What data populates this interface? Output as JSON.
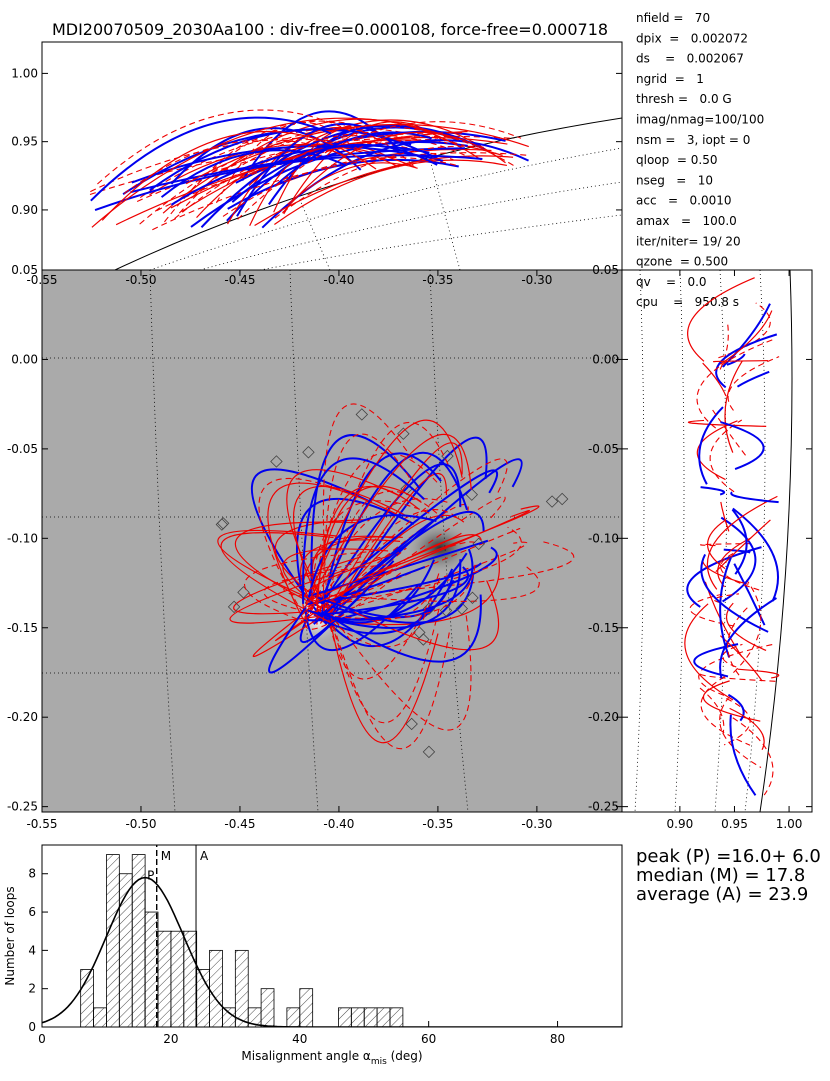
{
  "title": "MDI20070509_2030Aa100 : div-free=0.000108, force-free=0.000718",
  "parameters": [
    "nfield =   70",
    "dpix  =   0.002072",
    "ds    =   0.002067",
    "ngrid  =   1",
    "thresh =   0.0 G",
    "imag/nmag=100/100",
    "nsm =   3, iopt = 0",
    "qloop  = 0.50",
    "nseg   =   10",
    "acc   =   0.0010",
    "amax   =   100.0",
    "iter/niter= 19/ 20",
    "qzone  = 0.500",
    "qv    =   0.0",
    "cpu    =   950.8 s"
  ],
  "chart_data": [
    {
      "type": "field-lines",
      "panel": "top",
      "ylim": [
        0.856,
        1.023
      ],
      "yticks": [
        {
          "value": 0.9,
          "label": "0.90"
        },
        0.95,
        {
          "value": 1.0,
          "label": "1.00"
        }
      ]
    },
    {
      "type": "field-lines",
      "panel": "main",
      "xlim": [
        -0.55,
        -0.257
      ],
      "ylim": [
        -0.253,
        0.05
      ],
      "xticks": [
        -0.55,
        {
          "value": -0.5,
          "label": "-0.50"
        },
        -0.45,
        {
          "value": -0.4,
          "label": "-0.40"
        },
        -0.35,
        {
          "value": -0.3,
          "label": "-0.30"
        }
      ],
      "yticks": [
        -0.25,
        {
          "value": -0.2,
          "label": "-0.20"
        },
        -0.15,
        {
          "value": -0.1,
          "label": "-0.10"
        },
        -0.05,
        {
          "value": 0,
          "label": "0.00"
        },
        0.05
      ]
    },
    {
      "type": "field-lines",
      "panel": "side",
      "xlim": [
        0.847,
        1.021
      ],
      "ylim": [
        -0.253,
        0.05
      ],
      "xticks": [
        {
          "value": 0.9,
          "label": "0.90"
        },
        0.95,
        {
          "value": 1.0,
          "label": "1.00"
        }
      ],
      "yticks": [
        -0.25,
        {
          "value": -0.2,
          "label": "-0.20"
        },
        -0.15,
        {
          "value": -0.1,
          "label": "-0.10"
        },
        -0.05,
        {
          "value": 0,
          "label": "0.00"
        },
        0.05
      ]
    },
    {
      "type": "histogram",
      "bins": [
        6,
        8,
        10,
        12,
        14,
        16,
        18,
        20,
        22,
        24,
        26,
        28,
        30,
        32,
        34,
        36,
        38,
        40,
        42,
        44,
        46,
        48,
        50,
        52,
        54,
        56
      ],
      "counts": [
        3,
        1,
        9,
        8,
        9,
        6,
        5,
        5,
        5,
        3,
        4,
        1,
        4,
        1,
        2,
        0,
        1,
        2,
        0,
        0,
        1,
        1,
        1,
        1,
        1
      ],
      "xlim": [
        0,
        90
      ],
      "xticks": [
        0,
        20,
        40,
        60,
        80
      ],
      "ylim": [
        0,
        9.5
      ],
      "yticks": [
        0,
        2,
        4,
        6,
        8
      ],
      "xlabel": {
        "text": "Misalignment angle α",
        "subscript": "mis",
        "unit": " (deg)"
      },
      "ylabel": "Number of loops",
      "fit": {
        "peak": 16.0,
        "sigma": 6.0,
        "amplitude": 7.8
      },
      "markers": [
        {
          "label": "P",
          "value": 16.0
        },
        {
          "label": "M",
          "value": 17.8
        },
        {
          "label": "A",
          "value": 23.9
        }
      ],
      "annotations": [
        "peak (P) =16.0+ 6.0",
        "median (M) = 17.8",
        "average (A) = 23.9"
      ]
    }
  ]
}
